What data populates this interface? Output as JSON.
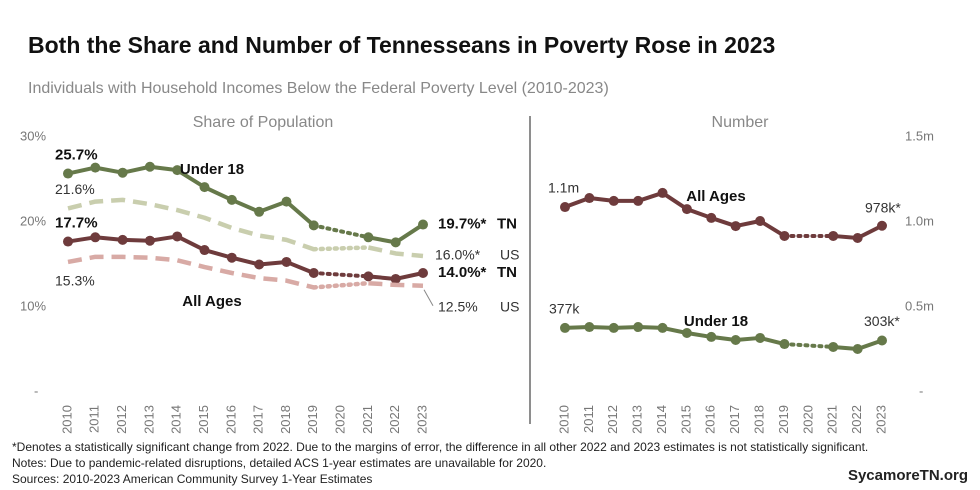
{
  "title": "Both the Share and Number of Tennesseans in Poverty Rose in 2023",
  "subtitle": "Individuals with Household Incomes Below the Federal Poverty Level (2010-2023)",
  "chart_data": [
    {
      "type": "line",
      "title": "Share of Population",
      "x": [
        2010,
        2011,
        2012,
        2013,
        2014,
        2015,
        2016,
        2017,
        2018,
        2019,
        2020,
        2021,
        2022,
        2023
      ],
      "xlim": [
        2010,
        2023
      ],
      "ylim": [
        0,
        30
      ],
      "yticks": [
        {
          "value": 30,
          "label": "30%"
        },
        {
          "value": 20,
          "label": "20%"
        },
        {
          "value": 10,
          "label": "10%"
        },
        {
          "value": 0,
          "label": "-"
        }
      ],
      "series": [
        {
          "name": "Under 18",
          "label": "TN",
          "color": "#66794a",
          "style": "solid",
          "markers": true,
          "values": [
            25.7,
            26.4,
            25.8,
            26.5,
            26.1,
            24.1,
            22.6,
            21.2,
            22.4,
            19.6,
            null,
            18.2,
            17.6,
            19.7
          ],
          "value_labels": [
            "25.7%",
            null,
            null,
            null,
            null,
            null,
            null,
            null,
            null,
            null,
            null,
            null,
            null,
            "19.7%*"
          ]
        },
        {
          "label": "US",
          "color": "#c9ceae",
          "style": "dashed",
          "markers": false,
          "values": [
            21.6,
            22.4,
            22.6,
            22.1,
            21.4,
            20.5,
            19.3,
            18.4,
            17.9,
            16.8,
            null,
            17.0,
            16.3,
            16.0
          ],
          "value_labels": [
            "21.6%",
            null,
            null,
            null,
            null,
            null,
            null,
            null,
            null,
            null,
            null,
            null,
            null,
            "16.0%*"
          ]
        },
        {
          "name": "All Ages",
          "label": "TN",
          "color": "#6e3b3c",
          "style": "solid",
          "markers": true,
          "values": [
            17.7,
            18.2,
            17.9,
            17.8,
            18.3,
            16.7,
            15.8,
            15.0,
            15.3,
            14.0,
            null,
            13.6,
            13.3,
            14.0
          ],
          "value_labels": [
            "17.7%",
            null,
            null,
            null,
            null,
            null,
            null,
            null,
            null,
            null,
            null,
            null,
            null,
            "14.0%*"
          ]
        },
        {
          "label": "US",
          "color": "#d8aaa5",
          "style": "dashed",
          "markers": false,
          "values": [
            15.3,
            15.9,
            15.9,
            15.8,
            15.5,
            14.7,
            14.0,
            13.4,
            13.1,
            12.3,
            null,
            12.8,
            12.6,
            12.5
          ],
          "value_labels": [
            "15.3%",
            null,
            null,
            null,
            null,
            null,
            null,
            null,
            null,
            null,
            null,
            null,
            null,
            "12.5%"
          ]
        }
      ]
    },
    {
      "type": "line",
      "title": "Number",
      "x": [
        2010,
        2011,
        2012,
        2013,
        2014,
        2015,
        2016,
        2017,
        2018,
        2019,
        2020,
        2021,
        2022,
        2023
      ],
      "xlim": [
        2010,
        2023
      ],
      "y2lim": [
        0,
        1500000
      ],
      "y2ticks": [
        {
          "value": 1500000,
          "label": "1.5m"
        },
        {
          "value": 1000000,
          "label": "1.0m"
        },
        {
          "value": 500000,
          "label": "0.5m"
        },
        {
          "value": 0,
          "label": "-"
        }
      ],
      "series": [
        {
          "name": "All Ages",
          "axis": "y2",
          "color": "#6e3b3c",
          "style": "solid",
          "markers": true,
          "values": [
            1088000,
            1141000,
            1124000,
            1124000,
            1171000,
            1076000,
            1024000,
            976000,
            1006000,
            918000,
            null,
            918000,
            906000,
            978000
          ],
          "value_labels": [
            "1.1m",
            null,
            null,
            null,
            null,
            null,
            null,
            null,
            null,
            null,
            null,
            null,
            null,
            "978k*"
          ]
        },
        {
          "name": "Under 18",
          "axis": "y2",
          "color": "#66794a",
          "style": "solid",
          "markers": true,
          "values": [
            377000,
            382000,
            377000,
            382000,
            377000,
            347000,
            324000,
            306000,
            318000,
            282000,
            null,
            265000,
            253000,
            303000
          ],
          "value_labels": [
            "377k",
            null,
            null,
            null,
            null,
            null,
            null,
            null,
            null,
            null,
            null,
            null,
            null,
            "303k*"
          ]
        }
      ]
    }
  ],
  "notes": [
    "*Denotes a statistically significant change from 2022. Due to the margins of error, the difference in all other 2022 and 2023 estimates is not statistically significant.",
    "Notes: Due to pandemic-related disruptions, detailed ACS 1-year estimates are unavailable for 2020.",
    "Sources: 2010-2023 American Community Survey 1-Year Estimates"
  ],
  "brand": "SycamoreTN.org"
}
